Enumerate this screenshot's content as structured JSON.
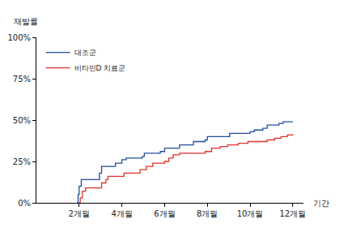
{
  "chart_data": {
    "type": "line",
    "line_style": "step",
    "y_label": "재발률",
    "x_label": "기간",
    "legend": "top-left",
    "grid": false,
    "xlim": [
      0,
      12.5
    ],
    "xticks": [
      {
        "value": 2,
        "label": "2개월"
      },
      {
        "value": 4,
        "label": "4개월"
      },
      {
        "value": 6,
        "label": "6개월"
      },
      {
        "value": 8,
        "label": "8개월"
      },
      {
        "value": 10,
        "label": "10개월"
      },
      {
        "value": 12,
        "label": "12개월"
      }
    ],
    "ylim": [
      0,
      100
    ],
    "yticks": [
      {
        "value": 0,
        "label": "0%"
      },
      {
        "value": 25,
        "label": "25%"
      },
      {
        "value": 50,
        "label": "50%"
      },
      {
        "value": 75,
        "label": "75%"
      },
      {
        "value": 100,
        "label": "100%"
      }
    ],
    "series": [
      {
        "name": "대조군",
        "color": "#1f4e9c",
        "x": [
          1.9,
          1.95,
          2.0,
          2.1,
          2.95,
          3.05,
          3.7,
          4.0,
          4.2,
          4.95,
          5.05,
          5.8,
          6.0,
          6.7,
          7.35,
          7.9,
          8.0,
          9.05,
          10.0,
          10.2,
          10.6,
          10.8,
          11.35,
          11.55,
          12.0
        ],
        "values": [
          0,
          5,
          10,
          14,
          18,
          22,
          24,
          26,
          27,
          28,
          30,
          31,
          33,
          35,
          37,
          38,
          40,
          42,
          43,
          44,
          45,
          47,
          48,
          49,
          49
        ]
      },
      {
        "name": "비타민D 치료군",
        "color": "#e0312b",
        "x": [
          2.0,
          2.05,
          2.15,
          2.3,
          3.05,
          3.25,
          3.35,
          4.1,
          4.85,
          5.15,
          5.45,
          6.0,
          6.2,
          6.4,
          6.7,
          7.9,
          8.2,
          8.6,
          8.95,
          9.45,
          9.9,
          10.8,
          11.15,
          11.45,
          11.75,
          12.0
        ],
        "values": [
          0,
          3,
          7,
          9,
          12,
          14,
          16,
          18,
          20,
          22,
          24,
          25,
          27,
          29,
          30,
          31,
          33,
          34,
          35,
          36,
          37,
          38,
          39,
          40,
          41,
          41.5
        ]
      }
    ]
  }
}
